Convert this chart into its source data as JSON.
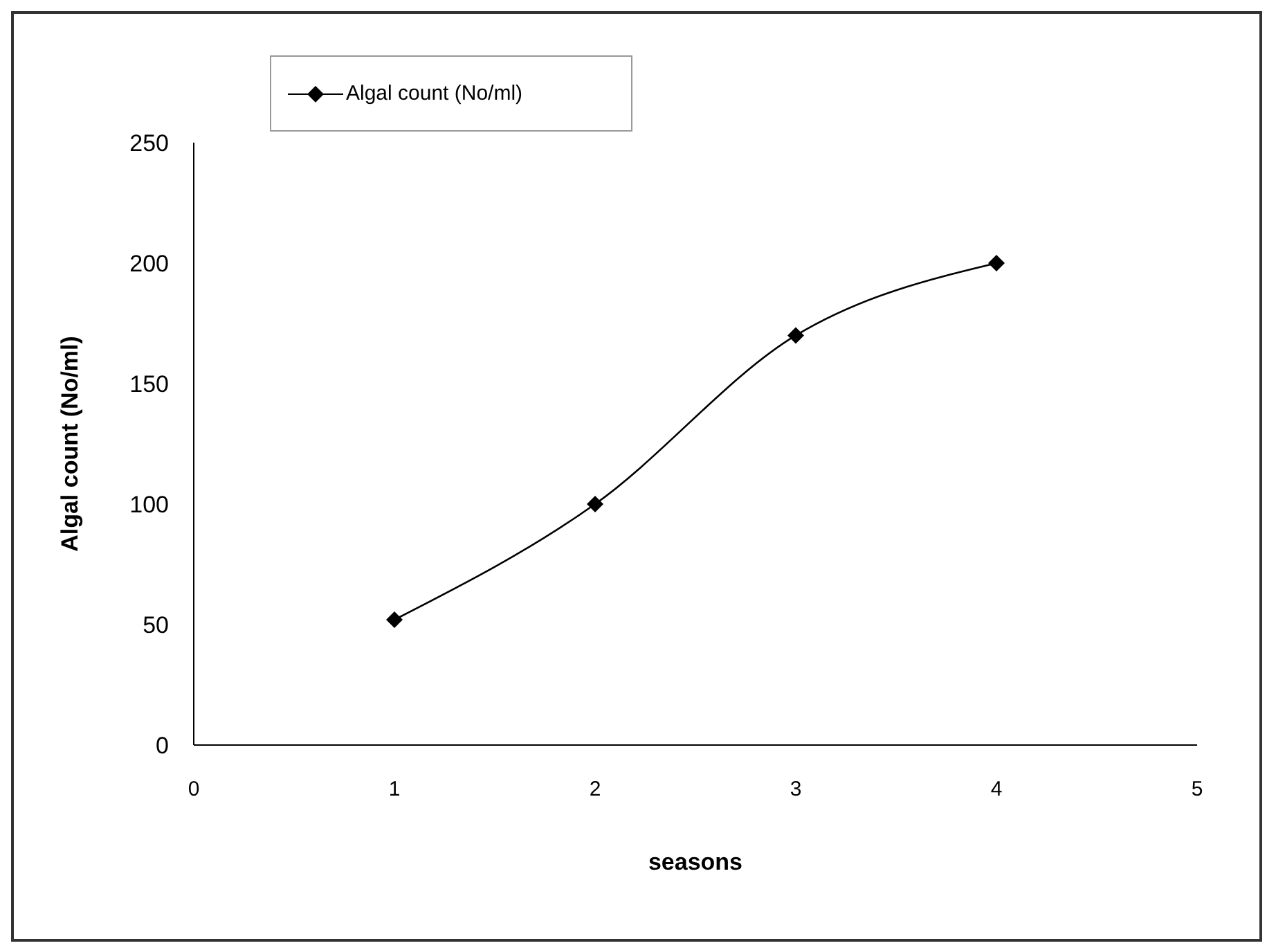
{
  "chart_data": {
    "type": "line",
    "xlabel": "seasons",
    "ylabel": "Algal count (No/ml)",
    "x": [
      1,
      2,
      3,
      4
    ],
    "series": [
      {
        "name": "Algal count (No/ml)",
        "color": "#000000",
        "values": [
          52,
          100,
          170,
          200
        ]
      }
    ],
    "xlim": [
      0,
      5
    ],
    "xticks": [
      0,
      1,
      2,
      3,
      4,
      5
    ],
    "ylim": [
      0,
      250
    ],
    "yticks": [
      0,
      50,
      100,
      150,
      200,
      250
    ],
    "grid": false,
    "legend": "top left",
    "marker": "diamond",
    "line_style": "solid"
  }
}
